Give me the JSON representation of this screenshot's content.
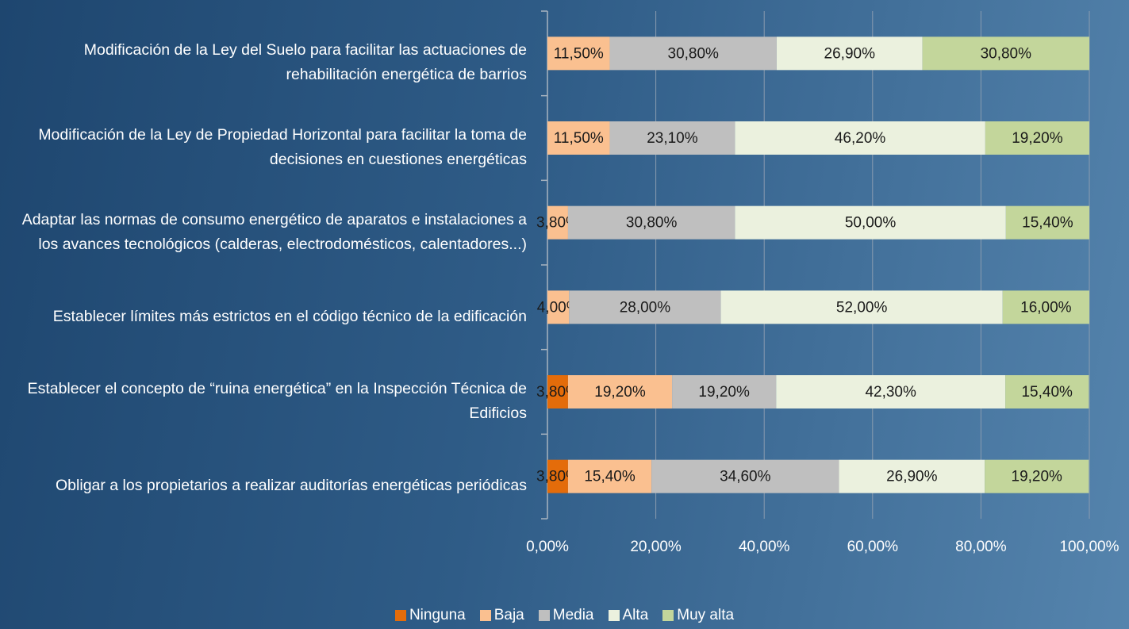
{
  "chart_data": {
    "type": "stacked_bar_horizontal",
    "categories": [
      "Modificación de la Ley del Suelo para facilitar las actuaciones de rehabilitación energética de barrios",
      "Modificación de la Ley de Propiedad Horizontal para facilitar la toma de decisiones en cuestiones energéticas",
      "Adaptar las normas de consumo energético de aparatos e instalaciones a los avances tecnológicos (calderas, electrodomésticos, calentadores...)",
      "Establecer límites más estrictos en el código técnico de la edificación",
      "Establecer el concepto de “ruina energética” en la Inspección Técnica de Edificios",
      "Obligar a los propietarios a realizar auditorías energéticas periódicas"
    ],
    "series": [
      {
        "name": "Ninguna",
        "color": "#e46c0a",
        "values": [
          null,
          null,
          null,
          null,
          3.8,
          3.8
        ],
        "value_labels": [
          null,
          null,
          null,
          null,
          "3,80%",
          "3,80%"
        ]
      },
      {
        "name": "Baja",
        "color": "#fac090",
        "values": [
          11.5,
          11.5,
          3.8,
          4.0,
          19.2,
          15.4
        ],
        "value_labels": [
          "11,50%",
          "11,50%",
          "3,80%",
          "4,00%",
          "19,20%",
          "15,40%"
        ]
      },
      {
        "name": "Media",
        "color": "#bfbfbf",
        "values": [
          30.8,
          23.1,
          30.8,
          28.0,
          19.2,
          34.6
        ],
        "value_labels": [
          "30,80%",
          "23,10%",
          "30,80%",
          "28,00%",
          "19,20%",
          "34,60%"
        ]
      },
      {
        "name": "Alta",
        "color": "#ebf1de",
        "values": [
          26.9,
          46.2,
          50.0,
          52.0,
          42.3,
          26.9
        ],
        "value_labels": [
          "26,90%",
          "46,20%",
          "50,00%",
          "52,00%",
          "42,30%",
          "26,90%"
        ]
      },
      {
        "name": "Muy alta",
        "color": "#c3d69b",
        "values": [
          30.8,
          19.2,
          15.4,
          16.0,
          15.4,
          19.2
        ],
        "value_labels": [
          "30,80%",
          "19,20%",
          "15,40%",
          "16,00%",
          "15,40%",
          "19,20%"
        ]
      }
    ],
    "xlim": [
      0,
      100
    ],
    "xticks": [
      {
        "value": 0,
        "label": "0,00%"
      },
      {
        "value": 20,
        "label": "20,00%"
      },
      {
        "value": 40,
        "label": "40,00%"
      },
      {
        "value": 60,
        "label": "60,00%"
      },
      {
        "value": 80,
        "label": "80,00%"
      },
      {
        "value": 100,
        "label": "100,00%"
      }
    ],
    "grid": true,
    "legend": "bottom"
  }
}
